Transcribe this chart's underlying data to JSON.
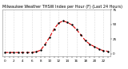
{
  "title": "Milwaukee Weather THSW Index per Hour (F) (Last 24 Hours)",
  "x_values": [
    0,
    1,
    2,
    3,
    4,
    5,
    6,
    7,
    8,
    9,
    10,
    11,
    12,
    13,
    14,
    15,
    16,
    17,
    18,
    19,
    20,
    21,
    22,
    23
  ],
  "y_values": [
    2,
    2,
    2,
    2,
    2,
    2,
    2,
    3,
    6,
    16,
    28,
    42,
    52,
    56,
    53,
    49,
    41,
    32,
    22,
    16,
    12,
    8,
    5,
    4
  ],
  "ylim": [
    -5,
    62
  ],
  "xlim": [
    -0.5,
    23.5
  ],
  "line_color": "#dd0000",
  "marker_color": "#000000",
  "grid_color": "#bbbbbb",
  "bg_color": "#ffffff",
  "yticks": [
    0,
    25,
    50,
    75
  ],
  "ytick_labels": [
    "0",
    "25",
    "50",
    "75"
  ],
  "xtick_step": 1,
  "title_fontsize": 3.5,
  "tick_fontsize": 3.0
}
